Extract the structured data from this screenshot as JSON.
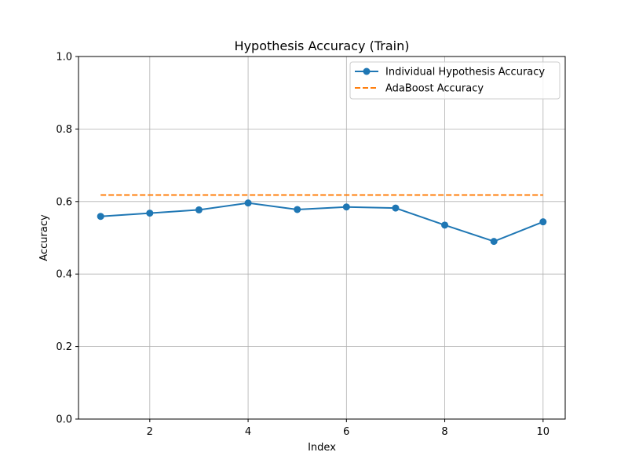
{
  "chart_data": {
    "type": "line",
    "title": "Hypothesis Accuracy (Train)",
    "xlabel": "Index",
    "ylabel": "Accuracy",
    "xlim": [
      0.55,
      10.45
    ],
    "ylim": [
      0.0,
      1.0
    ],
    "xticks": [
      2,
      4,
      6,
      8,
      10
    ],
    "yticks": [
      0.0,
      0.2,
      0.4,
      0.6,
      0.8,
      1.0
    ],
    "xtick_labels": [
      "2",
      "4",
      "6",
      "8",
      "10"
    ],
    "ytick_labels": [
      "0.0",
      "0.2",
      "0.4",
      "0.6",
      "0.8",
      "1.0"
    ],
    "grid": true,
    "legend_position": "top-right",
    "series": [
      {
        "name": "Individual Hypothesis Accuracy",
        "style": "solid",
        "marker": "circle",
        "color": "#1f77b4",
        "x": [
          1,
          2,
          3,
          4,
          5,
          6,
          7,
          8,
          9,
          10
        ],
        "values": [
          0.559,
          0.568,
          0.577,
          0.596,
          0.578,
          0.585,
          0.582,
          0.535,
          0.49,
          0.544
        ]
      },
      {
        "name": "AdaBoost Accuracy",
        "style": "dashed",
        "marker": "none",
        "color": "#ff7f0e",
        "x": [
          1,
          10
        ],
        "values": [
          0.618,
          0.618
        ]
      }
    ]
  }
}
